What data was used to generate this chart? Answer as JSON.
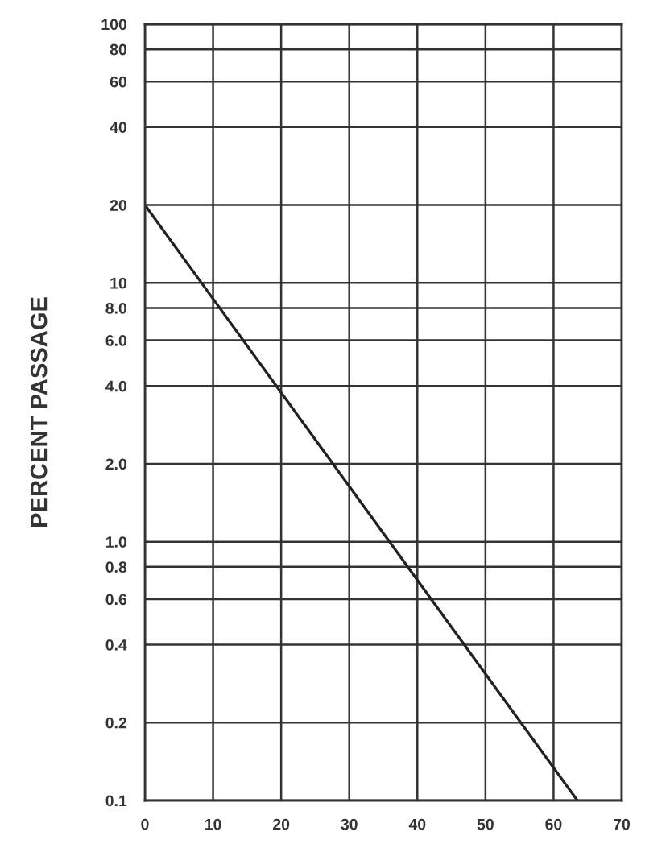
{
  "chart_data": {
    "type": "line",
    "ylabel": "PERCENT PASSAGE",
    "log": "y",
    "grid": true,
    "marker": "none",
    "line_style": "solid",
    "xlim": [
      0,
      70
    ],
    "xticks": [
      0,
      10,
      20,
      30,
      40,
      50,
      60,
      70
    ],
    "ylim": [
      0.1,
      100
    ],
    "yticks": [
      {
        "value": 0.1,
        "label": "0.1"
      },
      {
        "value": 0.2,
        "label": "0.2"
      },
      {
        "value": 0.4,
        "label": "0.4"
      },
      {
        "value": 0.6,
        "label": "0.6"
      },
      {
        "value": 0.8,
        "label": "0.8"
      },
      {
        "value": 1,
        "label": "1.0"
      },
      {
        "value": 2,
        "label": "2.0"
      },
      {
        "value": 4,
        "label": "4.0"
      },
      {
        "value": 6,
        "label": "6.0"
      },
      {
        "value": 8,
        "label": "8.0"
      },
      {
        "value": 10,
        "label": "10"
      },
      {
        "value": 20,
        "label": "20"
      },
      {
        "value": 40,
        "label": "40"
      },
      {
        "value": 60,
        "label": "60"
      },
      {
        "value": 80,
        "label": "80"
      },
      {
        "value": 100,
        "label": "100"
      }
    ],
    "series": [
      {
        "color": "#222222",
        "x": [
          0,
          63.5
        ],
        "values": [
          20,
          0.1
        ]
      }
    ]
  }
}
